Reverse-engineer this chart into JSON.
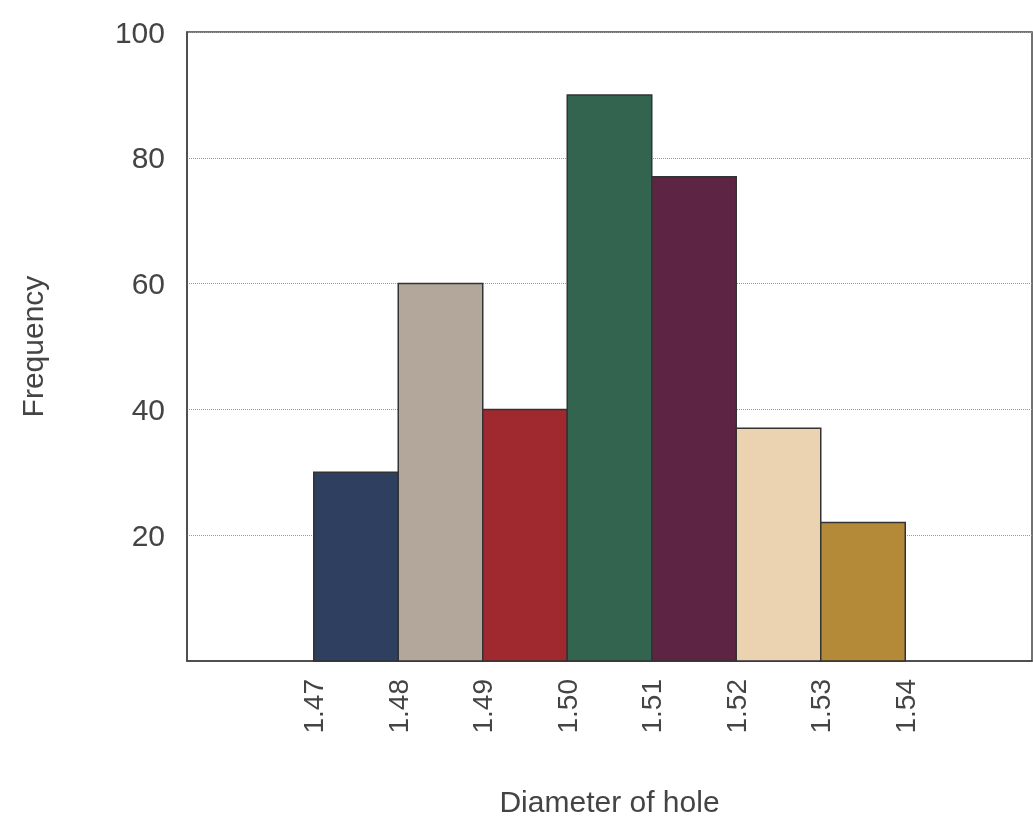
{
  "chart_data": {
    "type": "histogram",
    "xlabel": "Diameter of hole",
    "ylabel": "Frequency",
    "bins": [
      1.47,
      1.48,
      1.49,
      1.5,
      1.51,
      1.52,
      1.53,
      1.54
    ],
    "values": [
      30,
      60,
      40,
      90,
      77,
      37,
      22
    ],
    "colors": [
      "#2e3f5f",
      "#b3a79c",
      "#a0282f",
      "#326450",
      "#5e2444",
      "#ebd3b2",
      "#b48a38"
    ],
    "xlim": [
      1.455,
      1.555
    ],
    "xticks": [
      {
        "value": 1.47,
        "label": "1.47"
      },
      {
        "value": 1.48,
        "label": "1.48"
      },
      {
        "value": 1.49,
        "label": "1.49"
      },
      {
        "value": 1.5,
        "label": "1.50"
      },
      {
        "value": 1.51,
        "label": "1.51"
      },
      {
        "value": 1.52,
        "label": "1.52"
      },
      {
        "value": 1.53,
        "label": "1.53"
      },
      {
        "value": 1.54,
        "label": "1.54"
      }
    ],
    "ylim": [
      0,
      100
    ],
    "yticks": [
      20,
      40,
      60,
      80,
      100
    ],
    "grid": "y"
  }
}
